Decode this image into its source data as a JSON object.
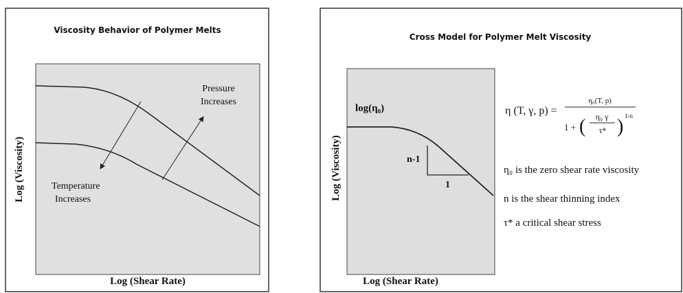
{
  "left": {
    "title": "Viscosity Behavior of Polymer Melts",
    "y_label": "Log (Viscosity)",
    "x_label": "Log (Shear Rate)",
    "pressure_label": [
      "Pressure",
      "Increases"
    ],
    "temperature_label": [
      "Temperature",
      "Increases"
    ]
  },
  "right": {
    "title": "Cross Model for Polymer Melt Viscosity",
    "y_label": "Log (Viscosity)",
    "x_label": "Log (Shear Rate)",
    "curve_labels": {
      "plateau": "log(η₀)",
      "slope": "n-1",
      "run": "1"
    },
    "equation": {
      "lhs": "η (T, γ, p) =",
      "numerator": "η₀(T, p)",
      "one_plus": "1 +",
      "inner_numerator": "η₀ γ",
      "inner_denominator": "τ*",
      "exponent": "1-n"
    },
    "definitions": [
      "η₀ is the zero shear rate viscosity",
      "n  is the shear thinning index",
      "τ* a critical shear stress"
    ]
  }
}
